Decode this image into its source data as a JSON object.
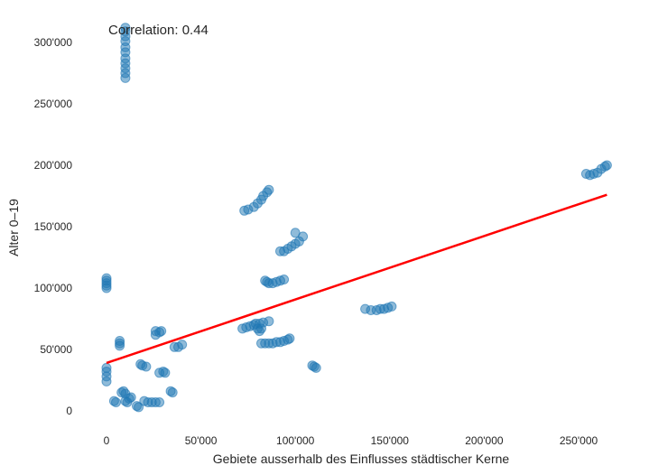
{
  "chart_data": {
    "type": "scatter",
    "title": "",
    "xlabel": "Gebiete ausserhalb des Einflusses städtischer Kerne",
    "ylabel": "Alter 0–19",
    "annotation": "Correlation: 0.44",
    "xlim": [
      -14000,
      277000
    ],
    "ylim": [
      -18000,
      318000
    ],
    "xticks": [
      0,
      50000,
      100000,
      150000,
      200000,
      250000
    ],
    "yticks": [
      0,
      50000,
      100000,
      150000,
      200000,
      250000,
      300000
    ],
    "xtick_labels": [
      "0",
      "50'000",
      "100'000",
      "150'000",
      "200'000",
      "250'000"
    ],
    "ytick_labels": [
      "0",
      "50'000",
      "100'000",
      "150'000",
      "200'000",
      "250'000",
      "300'000"
    ],
    "grid": false,
    "point_color": "#1f77b4",
    "point_opacity": 0.5,
    "line_color": "#ff0000",
    "regression_line": {
      "x": [
        0,
        265000
      ],
      "y": [
        39000,
        176000
      ]
    },
    "points": [
      [
        10000,
        312000
      ],
      [
        10000,
        309000
      ],
      [
        10000,
        305000
      ],
      [
        10000,
        301000
      ],
      [
        10000,
        296000
      ],
      [
        10000,
        292000
      ],
      [
        10000,
        287000
      ],
      [
        10000,
        283000
      ],
      [
        10000,
        279000
      ],
      [
        10000,
        275000
      ],
      [
        10000,
        271000
      ],
      [
        0,
        108000
      ],
      [
        0,
        106000
      ],
      [
        0,
        104000
      ],
      [
        0,
        102000
      ],
      [
        0,
        100000
      ],
      [
        0,
        35000
      ],
      [
        0,
        32000
      ],
      [
        0,
        28000
      ],
      [
        0,
        24000
      ],
      [
        7000,
        57000
      ],
      [
        7000,
        55000
      ],
      [
        7000,
        53000
      ],
      [
        4000,
        8000
      ],
      [
        5000,
        7000
      ],
      [
        8000,
        15000
      ],
      [
        9000,
        16000
      ],
      [
        10000,
        14000
      ],
      [
        10000,
        8000
      ],
      [
        11000,
        7000
      ],
      [
        13000,
        11000
      ],
      [
        12000,
        10000
      ],
      [
        16000,
        4000
      ],
      [
        17000,
        3000
      ],
      [
        18000,
        38000
      ],
      [
        19000,
        37000
      ],
      [
        21000,
        36000
      ],
      [
        20000,
        8000
      ],
      [
        22000,
        7000
      ],
      [
        24000,
        7000
      ],
      [
        26000,
        7000
      ],
      [
        28000,
        7000
      ],
      [
        26000,
        65000
      ],
      [
        26000,
        62000
      ],
      [
        28000,
        64000
      ],
      [
        29000,
        65000
      ],
      [
        28000,
        31000
      ],
      [
        30000,
        32000
      ],
      [
        31000,
        31000
      ],
      [
        34000,
        16000
      ],
      [
        35000,
        15000
      ],
      [
        36000,
        52000
      ],
      [
        38000,
        52000
      ],
      [
        40000,
        54000
      ],
      [
        73000,
        163000
      ],
      [
        75000,
        164000
      ],
      [
        78000,
        166000
      ],
      [
        80000,
        169000
      ],
      [
        82000,
        172000
      ],
      [
        83000,
        175000
      ],
      [
        85000,
        178000
      ],
      [
        86000,
        180000
      ],
      [
        72000,
        67000
      ],
      [
        74000,
        68000
      ],
      [
        76000,
        69000
      ],
      [
        78000,
        70000
      ],
      [
        79000,
        71000
      ],
      [
        81000,
        71000
      ],
      [
        83000,
        72000
      ],
      [
        80000,
        67000
      ],
      [
        81000,
        65000
      ],
      [
        82000,
        67000
      ],
      [
        86000,
        73000
      ],
      [
        82000,
        55000
      ],
      [
        84000,
        55000
      ],
      [
        86000,
        55000
      ],
      [
        88000,
        55000
      ],
      [
        90000,
        56000
      ],
      [
        92000,
        56000
      ],
      [
        94000,
        57000
      ],
      [
        96000,
        58000
      ],
      [
        97000,
        59000
      ],
      [
        84000,
        106000
      ],
      [
        85000,
        105000
      ],
      [
        86000,
        104000
      ],
      [
        88000,
        104000
      ],
      [
        90000,
        105000
      ],
      [
        92000,
        106000
      ],
      [
        94000,
        107000
      ],
      [
        92000,
        130000
      ],
      [
        94000,
        130000
      ],
      [
        96000,
        132000
      ],
      [
        98000,
        134000
      ],
      [
        100000,
        136000
      ],
      [
        102000,
        138000
      ],
      [
        104000,
        142000
      ],
      [
        100000,
        145000
      ],
      [
        109000,
        37000
      ],
      [
        110000,
        36000
      ],
      [
        111000,
        35000
      ],
      [
        137000,
        83000
      ],
      [
        140000,
        82000
      ],
      [
        143000,
        82000
      ],
      [
        145000,
        83000
      ],
      [
        147000,
        83000
      ],
      [
        149000,
        84000
      ],
      [
        151000,
        85000
      ],
      [
        254000,
        193000
      ],
      [
        256000,
        192000
      ],
      [
        258000,
        193000
      ],
      [
        260000,
        194000
      ],
      [
        262000,
        197000
      ],
      [
        264000,
        199000
      ],
      [
        265000,
        200000
      ]
    ]
  }
}
